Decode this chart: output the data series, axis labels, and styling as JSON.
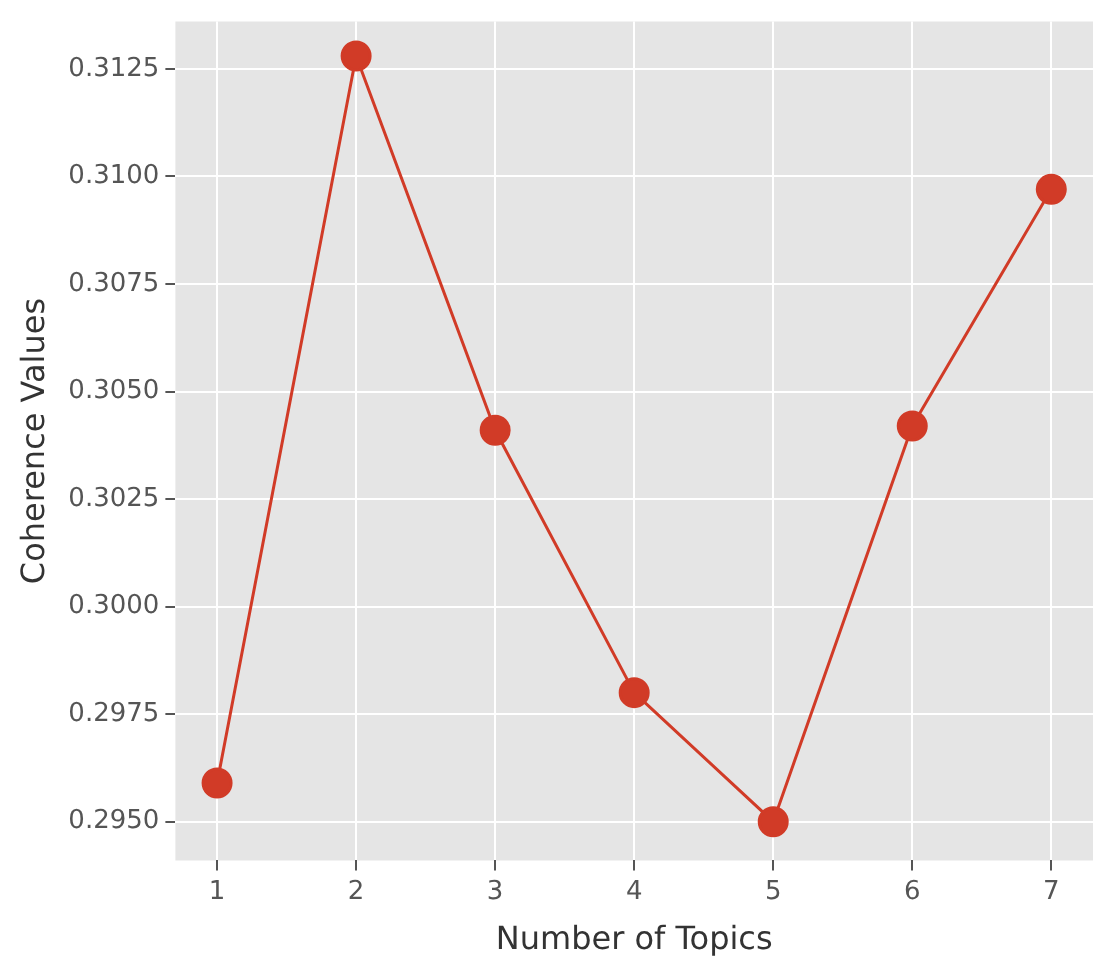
{
  "chart_data": {
    "type": "line",
    "xlabel": "Number of Topics",
    "ylabel": "Coherence Values",
    "x": [
      1,
      2,
      3,
      4,
      5,
      6,
      7
    ],
    "series": [
      {
        "color": "#d13b27",
        "values": [
          0.2959,
          0.3128,
          0.3041,
          0.298,
          0.295,
          0.3042,
          0.3097
        ]
      }
    ],
    "xlim": [
      0.7,
      7.3
    ],
    "xticks": [
      1,
      2,
      3,
      4,
      5,
      6,
      7
    ],
    "ylim": [
      0.2941,
      0.3136
    ],
    "yticks": [
      {
        "value": 0.295,
        "label": "0.2950"
      },
      {
        "value": 0.2975,
        "label": "0.2975"
      },
      {
        "value": 0.3,
        "label": "0.3000"
      },
      {
        "value": 0.3025,
        "label": "0.3025"
      },
      {
        "value": 0.305,
        "label": "0.3050"
      },
      {
        "value": 0.3075,
        "label": "0.3075"
      },
      {
        "value": 0.31,
        "label": "0.3100"
      },
      {
        "value": 0.3125,
        "label": "0.3125"
      }
    ],
    "grid": true,
    "marker": "circle",
    "line_style": "solid",
    "legend": false
  }
}
